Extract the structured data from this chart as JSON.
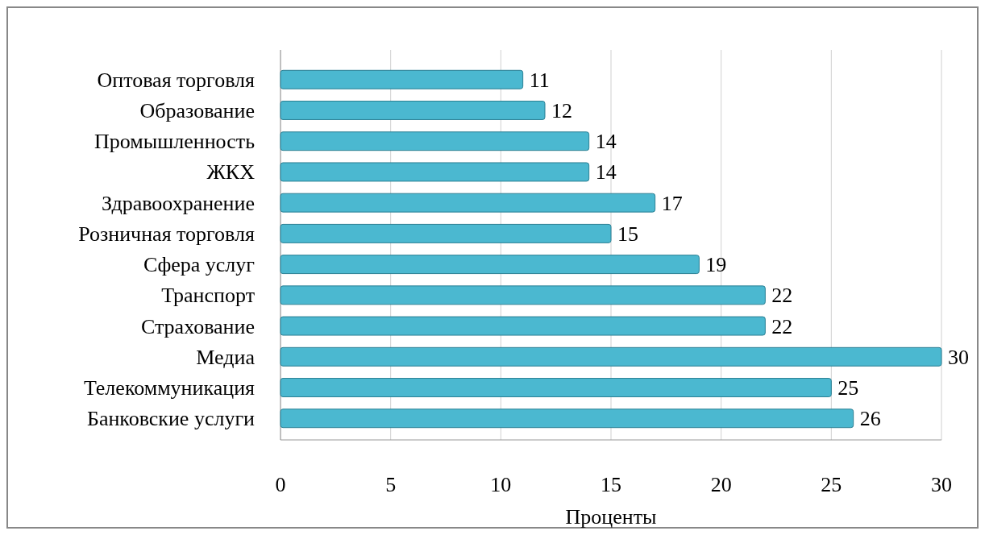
{
  "chart_data": {
    "type": "bar",
    "orientation": "horizontal",
    "xlabel": "Проценты",
    "categories": [
      "Оптовая торговля",
      "Образование",
      "Промышленность",
      "ЖКХ",
      "Здравоохранение",
      "Розничная торговля",
      "Сфера услуг",
      "Транспорт",
      "Страхование",
      "Медиа",
      "Телекоммуникация",
      "Банковские услуги"
    ],
    "values": [
      11,
      12,
      14,
      14,
      17,
      15,
      19,
      22,
      22,
      30,
      25,
      26
    ],
    "color": "#4bb8d0",
    "xlim": [
      0,
      30
    ],
    "xticks": [
      0,
      5,
      10,
      15,
      20,
      25,
      30
    ],
    "grid": "x",
    "data_labels": true
  }
}
